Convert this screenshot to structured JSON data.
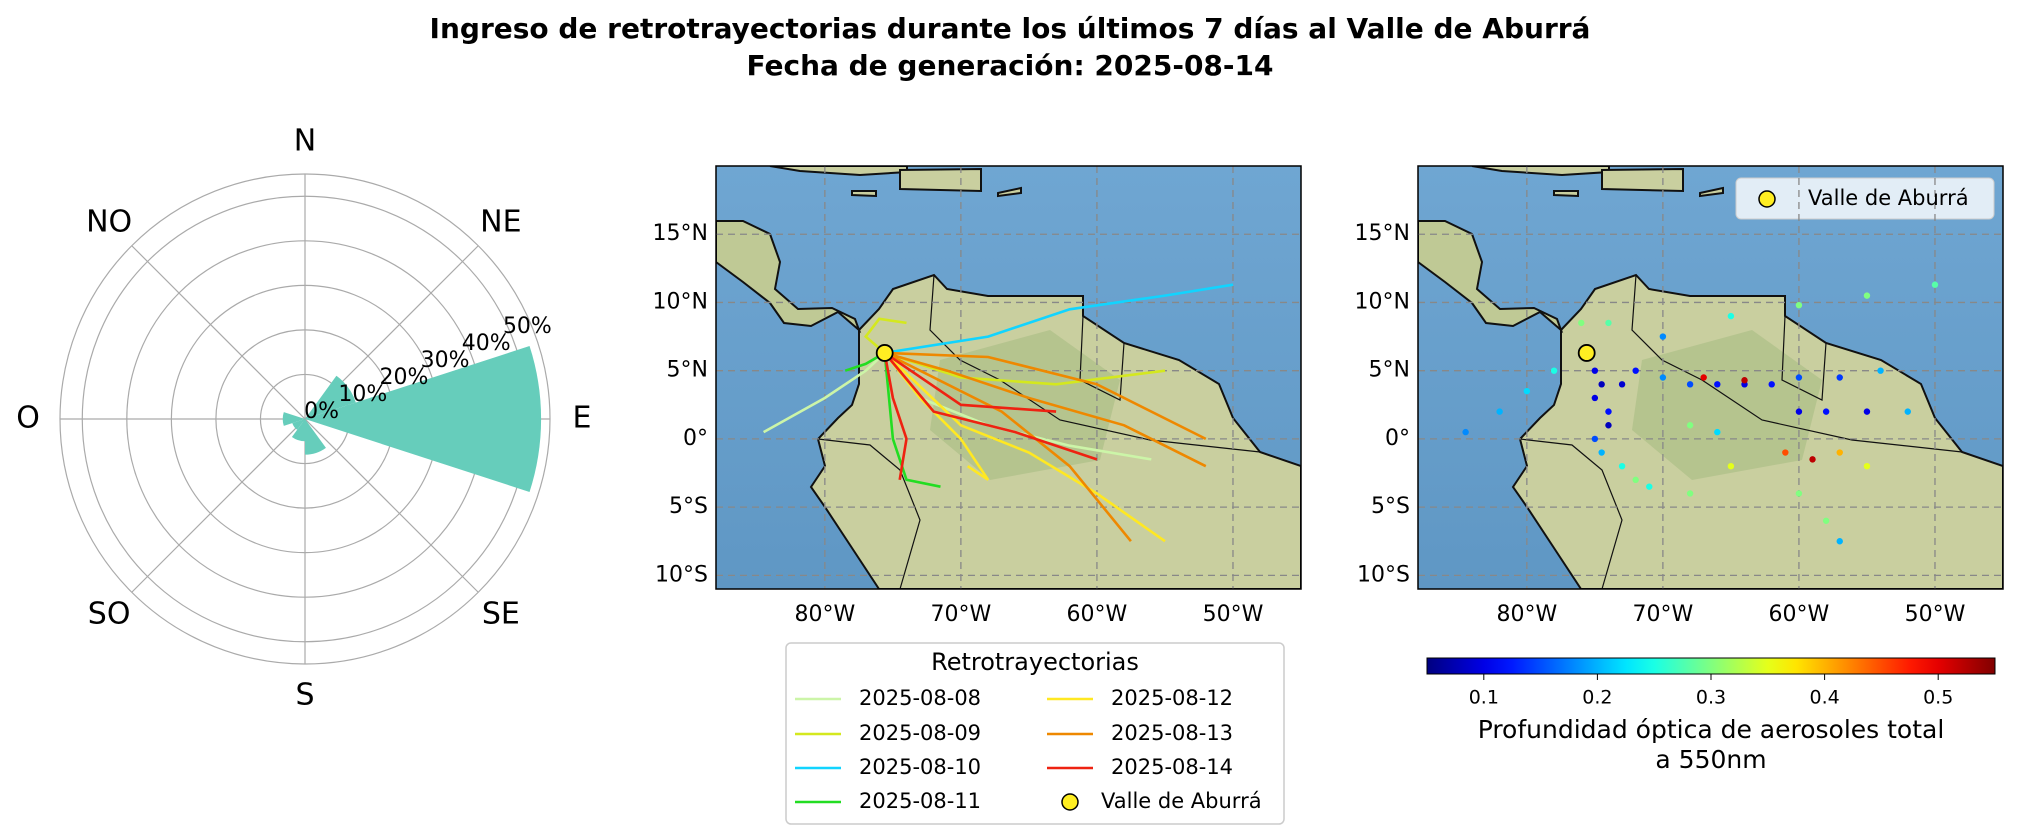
{
  "title": [
    "Ingreso de retrotrayectorias durante los últimos 7 días al Valle de Aburrá",
    "Fecha de generación: 2025-08-14"
  ],
  "chart_data": [
    {
      "type": "polar_bar",
      "color": "#66cdbb",
      "theta": [
        18,
        54,
        90,
        126,
        162,
        198,
        234,
        270,
        306,
        342
      ],
      "values": [
        0,
        12,
        53,
        0,
        8,
        5,
        3,
        5,
        0,
        0
      ],
      "rlim": [
        0,
        55
      ],
      "rticks": [
        {
          "value": 0,
          "label": "0%"
        },
        {
          "value": 10,
          "label": "10%"
        },
        {
          "value": 20,
          "label": "20%"
        },
        {
          "value": 30,
          "label": "30%"
        },
        {
          "value": 40,
          "label": "40%"
        },
        {
          "value": 50,
          "label": "50%"
        }
      ],
      "direction_labels": [
        "N",
        "NE",
        "E",
        "SE",
        "S",
        "SO",
        "O",
        "NO"
      ]
    },
    {
      "type": "line",
      "xlim": [
        -88,
        -45
      ],
      "ylim": [
        -11,
        20
      ],
      "grid": true,
      "xticks": [
        {
          "value": -80,
          "label": "80°W"
        },
        {
          "value": -70,
          "label": "70°W"
        },
        {
          "value": -60,
          "label": "60°W"
        },
        {
          "value": -50,
          "label": "50°W"
        }
      ],
      "yticks": [
        {
          "value": -10,
          "label": "10°S"
        },
        {
          "value": -5,
          "label": "5°S"
        },
        {
          "value": 0,
          "label": "0°"
        },
        {
          "value": 5,
          "label": "5°N"
        },
        {
          "value": 10,
          "label": "10°N"
        },
        {
          "value": 15,
          "label": "15°N"
        }
      ],
      "legend_title": "Retrotrayectorias",
      "series": [
        {
          "name": "2025-08-08",
          "color": "#ccf5a8",
          "x": [
            -84.5,
            -80,
            -77,
            -75.6,
            null,
            -56,
            -62,
            -68,
            -73,
            -75.6
          ],
          "values": [
            0.5,
            3,
            5,
            6.3,
            null,
            -1.5,
            -0.5,
            1,
            3,
            6.3
          ]
        },
        {
          "name": "2025-08-09",
          "color": "#d4e81e",
          "x": [
            -74,
            -76,
            -77,
            -75.6,
            null,
            -55,
            -63,
            -70,
            -75.6
          ],
          "values": [
            8.5,
            8.8,
            7.5,
            6.3,
            null,
            5,
            4,
            4.5,
            6.3
          ]
        },
        {
          "name": "2025-08-10",
          "color": "#11d4ff",
          "x": [
            -50,
            -55,
            -62,
            -68,
            -75.6
          ],
          "values": [
            11.3,
            10.5,
            9.5,
            7.5,
            6.3
          ]
        },
        {
          "name": "2025-08-11",
          "color": "#22dd22",
          "x": [
            -78.5,
            -77,
            -75.6,
            null,
            -71.5,
            -74,
            -75,
            -75.6
          ],
          "values": [
            5,
            5.5,
            6.3,
            null,
            -3.5,
            -3,
            0,
            6.3
          ]
        },
        {
          "name": "2025-08-12",
          "color": "#ffe822",
          "x": [
            -55,
            -60,
            -65,
            -70,
            -75.6,
            null,
            -69.5,
            -68,
            -70,
            -73,
            -75.6
          ],
          "values": [
            -7.5,
            -4,
            -1,
            1,
            6.3,
            null,
            -2,
            -3,
            0,
            3,
            6.3
          ]
        },
        {
          "name": "2025-08-13",
          "color": "#ee8800",
          "x": [
            -52,
            -58,
            -65,
            -71,
            -75.6,
            null,
            -57.5,
            -62,
            -67,
            -75.6,
            null,
            -52,
            -60,
            -68,
            -75.6
          ],
          "values": [
            -2,
            1,
            3,
            5,
            6.3,
            null,
            -7.5,
            -2,
            2,
            6.3,
            null,
            0,
            4,
            6,
            6.3
          ]
        },
        {
          "name": "2025-08-14",
          "color": "#ee2211",
          "x": [
            -60,
            -66,
            -72,
            -75.6,
            null,
            -74.5,
            -74,
            -75,
            -75.6,
            null,
            -63,
            -70,
            -75.6
          ],
          "values": [
            -1.5,
            0.5,
            2,
            6.3,
            null,
            -3,
            0,
            3,
            6.3,
            null,
            2,
            2.5,
            6.3
          ]
        }
      ],
      "marker": {
        "name": "Valle de Aburrá",
        "x": -75.6,
        "y": 6.3,
        "color": "#ffee22"
      }
    },
    {
      "type": "scatter",
      "xlim": [
        -88,
        -45
      ],
      "ylim": [
        -11,
        20
      ],
      "grid": true,
      "legend": "upper right",
      "xticks": [
        {
          "value": -80,
          "label": "80°W"
        },
        {
          "value": -70,
          "label": "70°W"
        },
        {
          "value": -60,
          "label": "60°W"
        },
        {
          "value": -50,
          "label": "50°W"
        }
      ],
      "yticks": [
        {
          "value": -10,
          "label": "10°S"
        },
        {
          "value": -5,
          "label": "5°S"
        },
        {
          "value": 0,
          "label": "0°"
        },
        {
          "value": 5,
          "label": "5°N"
        },
        {
          "value": 10,
          "label": "10°N"
        },
        {
          "value": 15,
          "label": "15°N"
        }
      ],
      "x": [
        -75,
        -74.5,
        -75,
        -74,
        -74,
        -75,
        -74.5,
        -73,
        -72,
        -73,
        -72,
        -70,
        -68,
        -66,
        -64,
        -62,
        -60,
        -57,
        -54,
        -60,
        -58,
        -55,
        -52,
        -67,
        -64,
        -59,
        -61,
        -57,
        -55,
        -65,
        -68,
        -60,
        -57,
        -58,
        -84.5,
        -82,
        -80,
        -78,
        -76,
        -74,
        -55,
        -60,
        -50,
        -65,
        -70,
        -68,
        -71,
        -66
      ],
      "values": [
        5,
        4,
        3,
        2,
        1,
        0,
        -1,
        -2,
        -3,
        4,
        5,
        4.5,
        4,
        4,
        4,
        4,
        4.5,
        4.5,
        5,
        2,
        2,
        2,
        2,
        4.5,
        4.3,
        -1.5,
        -1,
        -1,
        -2,
        -2,
        -4,
        -4,
        -7.5,
        -6,
        0.5,
        2,
        3.5,
        5,
        8.5,
        8.5,
        10.5,
        9.8,
        11.3,
        9,
        7.5,
        1,
        -3.5,
        0.5
      ],
      "c": [
        0.1,
        0.08,
        0.1,
        0.12,
        0.08,
        0.15,
        0.2,
        0.25,
        0.3,
        0.09,
        0.12,
        0.18,
        0.15,
        0.12,
        0.1,
        0.12,
        0.15,
        0.14,
        0.2,
        0.1,
        0.12,
        0.1,
        0.2,
        0.5,
        0.52,
        0.52,
        0.45,
        0.4,
        0.35,
        0.35,
        0.3,
        0.3,
        0.2,
        0.3,
        0.18,
        0.2,
        0.22,
        0.25,
        0.3,
        0.28,
        0.3,
        0.3,
        0.28,
        0.25,
        0.18,
        0.3,
        0.25,
        0.22
      ],
      "cmap": "jet",
      "clim": [
        0.05,
        0.55
      ],
      "cticks": [
        0.1,
        0.2,
        0.3,
        0.4,
        0.5
      ],
      "colorbar_label": [
        "Profundidad óptica de aerosoles total",
        "a 550nm"
      ],
      "marker": {
        "name": "Valle de Aburrá",
        "x": -75.6,
        "y": 6.3,
        "color": "#ffee22"
      }
    }
  ]
}
